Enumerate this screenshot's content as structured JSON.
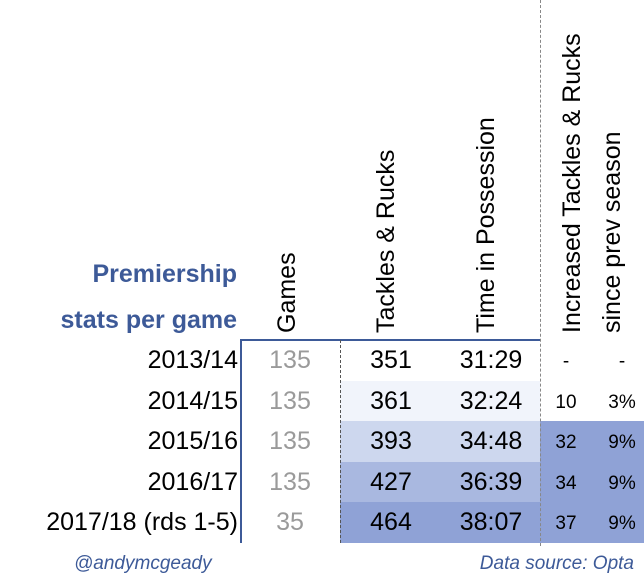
{
  "title": {
    "line1": "Premiership",
    "line2": "stats per game"
  },
  "columns": {
    "games": "Games",
    "tackles": "Tackles & Rucks",
    "possession": "Time in Possession",
    "increase_line1": "Increased Tackles & Rucks",
    "increase_line2": "since prev season"
  },
  "chart_data": {
    "type": "table",
    "rows": [
      {
        "season": "2013/14",
        "games": "135",
        "tackles": "351",
        "possession": "31:29",
        "increase_abs": "-",
        "increase_pct": "-"
      },
      {
        "season": "2014/15",
        "games": "135",
        "tackles": "361",
        "possession": "32:24",
        "increase_abs": "10",
        "increase_pct": "3%"
      },
      {
        "season": "2015/16",
        "games": "135",
        "tackles": "393",
        "possession": "34:48",
        "increase_abs": "32",
        "increase_pct": "9%"
      },
      {
        "season": "2016/17",
        "games": "135",
        "tackles": "427",
        "possession": "36:39",
        "increase_abs": "34",
        "increase_pct": "9%"
      },
      {
        "season": "2017/18 (rds 1-5)",
        "games": "35",
        "tackles": "464",
        "possession": "38:07",
        "increase_abs": "37",
        "increase_pct": "9%"
      }
    ],
    "shading_colors": [
      "#ffffff",
      "#f1f4fb",
      "#cdd7ee",
      "#a9b8e0",
      "#8fa2d6"
    ],
    "increase_shade_color": "#8fa2d6"
  },
  "footer": {
    "left": "@andymcgeady",
    "right": "Data source: Opta"
  }
}
